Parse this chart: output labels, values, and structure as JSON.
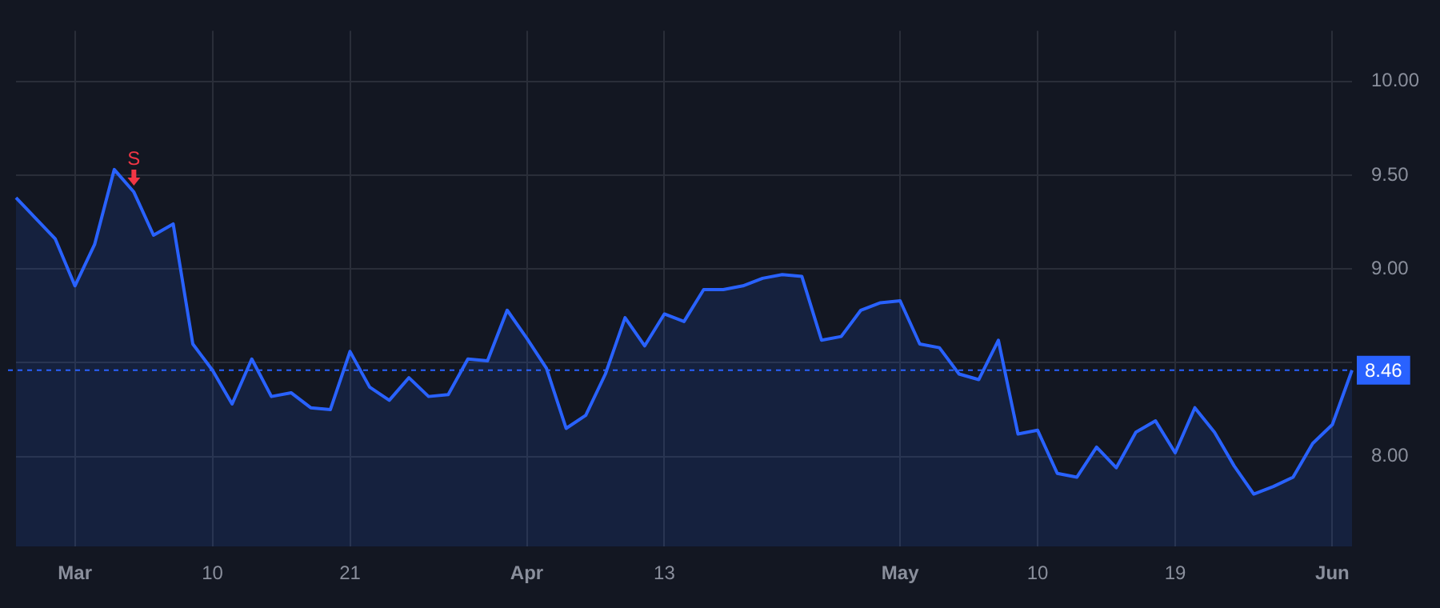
{
  "chart_data": {
    "type": "area",
    "categories": [
      null,
      null,
      null,
      "Mar",
      null,
      null,
      null,
      null,
      null,
      null,
      "10",
      null,
      null,
      null,
      null,
      null,
      null,
      "21",
      null,
      null,
      null,
      null,
      null,
      null,
      null,
      null,
      "Apr",
      null,
      null,
      null,
      null,
      null,
      null,
      "13",
      null,
      null,
      null,
      null,
      null,
      null,
      null,
      null,
      null,
      null,
      null,
      "May",
      null,
      null,
      null,
      null,
      null,
      null,
      "10",
      null,
      null,
      null,
      null,
      null,
      null,
      "19",
      null,
      null,
      null,
      null,
      null,
      null,
      null,
      "Jun",
      null
    ],
    "series": [
      {
        "color": "#2962ff",
        "values": [
          9.38,
          9.27,
          9.16,
          8.91,
          9.13,
          9.53,
          9.41,
          9.18,
          9.24,
          8.6,
          8.46,
          8.28,
          8.52,
          8.32,
          8.34,
          8.26,
          8.25,
          8.56,
          8.37,
          8.3,
          8.42,
          8.32,
          8.33,
          8.52,
          8.51,
          8.78,
          8.63,
          8.47,
          8.15,
          8.22,
          8.44,
          8.74,
          8.59,
          8.76,
          8.72,
          8.89,
          8.89,
          8.91,
          8.95,
          8.97,
          8.96,
          8.62,
          8.64,
          8.78,
          8.82,
          8.83,
          8.6,
          8.58,
          8.44,
          8.41,
          8.62,
          8.12,
          8.14,
          7.91,
          7.89,
          8.05,
          7.94,
          8.13,
          8.19,
          8.02,
          8.26,
          8.13,
          7.95,
          7.8,
          7.84,
          7.89,
          8.07,
          8.17,
          8.46
        ]
      }
    ],
    "ylim": [
      7.52,
      10.27
    ],
    "yticks": [
      {
        "value": 8,
        "label": "8.00"
      },
      {
        "value": 8.5,
        "label": null
      },
      {
        "value": 9,
        "label": "9.00"
      },
      {
        "value": 9.5,
        "label": "9.50"
      },
      {
        "value": 10,
        "label": "10.00"
      }
    ],
    "grid": true,
    "marker": "none",
    "ref_lines": [
      {
        "axis": "y",
        "value": 8.46,
        "label": "8.46",
        "color": "#2962ff",
        "line_style": "dashed"
      }
    ],
    "annotations": [
      {
        "text": "S",
        "y": 9.41
      }
    ]
  }
}
